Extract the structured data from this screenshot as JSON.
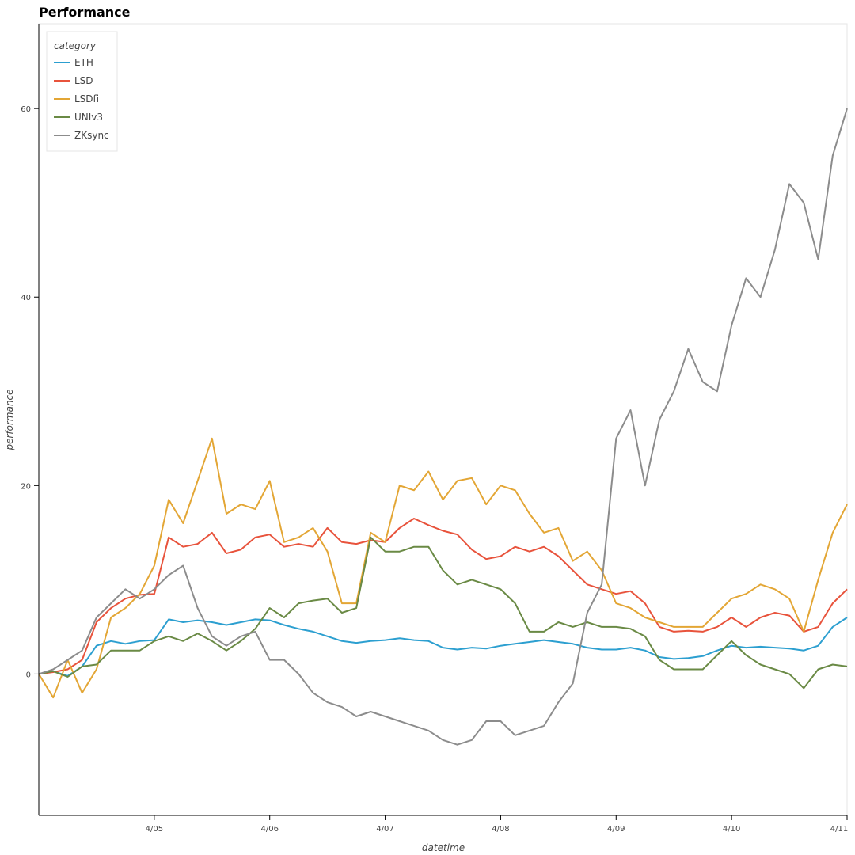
{
  "chart_data": {
    "type": "line",
    "title": "Performance",
    "xlabel": "datetime",
    "ylabel": "performance",
    "xlim": [
      -1.0,
      6.0
    ],
    "ylim": [
      -15,
      69
    ],
    "x_ticks": [
      {
        "v": 0,
        "label": "4/05"
      },
      {
        "v": 1,
        "label": "4/06"
      },
      {
        "v": 2,
        "label": "4/07"
      },
      {
        "v": 3,
        "label": "4/08"
      },
      {
        "v": 4,
        "label": "4/09"
      },
      {
        "v": 5,
        "label": "4/10"
      },
      {
        "v": 6,
        "label": "4/11"
      }
    ],
    "y_ticks": [
      {
        "v": 0,
        "label": "0"
      },
      {
        "v": 20,
        "label": "20"
      },
      {
        "v": 40,
        "label": "40"
      },
      {
        "v": 60,
        "label": "60"
      }
    ],
    "legend": {
      "title": "category",
      "position": "top-left"
    },
    "x": [
      -1.0,
      -0.875,
      -0.75,
      -0.625,
      -0.5,
      -0.375,
      -0.25,
      -0.125,
      0.0,
      0.125,
      0.25,
      0.375,
      0.5,
      0.625,
      0.75,
      0.875,
      1.0,
      1.125,
      1.25,
      1.375,
      1.5,
      1.625,
      1.75,
      1.875,
      2.0,
      2.125,
      2.25,
      2.375,
      2.5,
      2.625,
      2.75,
      2.875,
      3.0,
      3.125,
      3.25,
      3.375,
      3.5,
      3.625,
      3.75,
      3.875,
      4.0,
      4.125,
      4.25,
      4.375,
      4.5,
      4.625,
      4.75,
      4.875,
      5.0,
      5.125,
      5.25,
      5.375,
      5.5,
      5.625,
      5.75,
      5.875,
      6.0
    ],
    "series": [
      {
        "name": "ETH",
        "color": "#2c9fd0",
        "values": [
          0,
          0.3,
          -0.2,
          0.8,
          3.0,
          3.5,
          3.2,
          3.5,
          3.6,
          5.8,
          5.5,
          5.7,
          5.5,
          5.2,
          5.5,
          5.8,
          5.7,
          5.2,
          4.8,
          4.5,
          4.0,
          3.5,
          3.3,
          3.5,
          3.6,
          3.8,
          3.6,
          3.5,
          2.8,
          2.6,
          2.8,
          2.7,
          3.0,
          3.2,
          3.4,
          3.6,
          3.4,
          3.2,
          2.8,
          2.6,
          2.6,
          2.8,
          2.5,
          1.8,
          1.6,
          1.7,
          1.9,
          2.5,
          3.0,
          2.8,
          2.9,
          2.8,
          2.7,
          2.5,
          3.0,
          5.0,
          6.0
        ]
      },
      {
        "name": "LSD",
        "color": "#e8533c",
        "values": [
          0,
          0.2,
          0.5,
          1.5,
          5.5,
          7.0,
          8.0,
          8.4,
          8.5,
          14.5,
          13.5,
          13.8,
          15.0,
          12.8,
          13.2,
          14.5,
          14.8,
          13.5,
          13.8,
          13.5,
          15.5,
          14.0,
          13.8,
          14.2,
          14.0,
          15.5,
          16.5,
          15.8,
          15.2,
          14.8,
          13.2,
          12.2,
          12.5,
          13.5,
          13.0,
          13.5,
          12.5,
          11.0,
          9.5,
          9.0,
          8.5,
          8.8,
          7.5,
          5.0,
          4.5,
          4.6,
          4.5,
          5.0,
          6.0,
          5.0,
          6.0,
          6.5,
          6.2,
          4.5,
          5.0,
          7.5,
          9.0
        ]
      },
      {
        "name": "LSDfi",
        "color": "#e3a635",
        "values": [
          0,
          -2.5,
          1.5,
          -2.0,
          0.5,
          6.0,
          7.0,
          8.5,
          11.5,
          18.5,
          16.0,
          20.5,
          25.0,
          17.0,
          18.0,
          17.5,
          20.5,
          14.0,
          14.5,
          15.5,
          13.0,
          7.5,
          7.5,
          15.0,
          14.0,
          20.0,
          19.5,
          21.5,
          18.5,
          20.5,
          20.8,
          18.0,
          20.0,
          19.5,
          17.0,
          15.0,
          15.5,
          12.0,
          13.0,
          11.0,
          7.5,
          7.0,
          6.0,
          5.5,
          5.0,
          5.0,
          5.0,
          6.5,
          8.0,
          8.5,
          9.5,
          9.0,
          8.0,
          4.5,
          10.0,
          15.0,
          18.0
        ]
      },
      {
        "name": "UNIv3",
        "color": "#6a8a45",
        "values": [
          0,
          0.3,
          -0.3,
          0.8,
          1.0,
          2.5,
          2.5,
          2.5,
          3.5,
          4.0,
          3.5,
          4.3,
          3.5,
          2.5,
          3.5,
          4.8,
          7.0,
          6.0,
          7.5,
          7.8,
          8.0,
          6.5,
          7.0,
          14.5,
          13.0,
          13.0,
          13.5,
          13.5,
          11.0,
          9.5,
          10.0,
          9.5,
          9.0,
          7.5,
          4.5,
          4.5,
          5.5,
          5.0,
          5.5,
          5.0,
          5.0,
          4.8,
          4.0,
          1.5,
          0.5,
          0.5,
          0.5,
          2.0,
          3.5,
          2.0,
          1.0,
          0.5,
          0.0,
          -1.5,
          0.5,
          1.0,
          0.8
        ]
      },
      {
        "name": "ZKsync",
        "color": "#8c8c8c",
        "values": [
          0,
          0.5,
          1.5,
          2.5,
          6.0,
          7.5,
          9.0,
          8.0,
          9.0,
          10.5,
          11.5,
          7.0,
          4.0,
          3.0,
          4.0,
          4.5,
          1.5,
          1.5,
          0.0,
          -2.0,
          -3.0,
          -3.5,
          -4.5,
          -4.0,
          -4.5,
          -5.0,
          -5.5,
          -6.0,
          -7.0,
          -7.5,
          -7.0,
          -5.0,
          -5.0,
          -6.5,
          -6.0,
          -5.5,
          -3.0,
          -1.0,
          6.5,
          9.5,
          25.0,
          28.0,
          20.0,
          27.0,
          30.0,
          34.5,
          31.0,
          30.0,
          37.0,
          42.0,
          40.0,
          45.0,
          52.0,
          50.0,
          44.0,
          55.0,
          60.0
        ]
      }
    ]
  }
}
